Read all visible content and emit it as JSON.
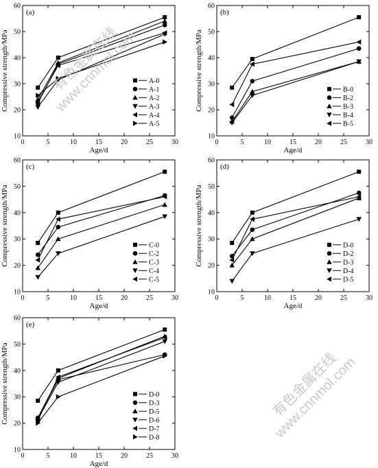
{
  "watermark": {
    "line1": "有色金属在线",
    "line2": "www.cnnmol.com"
  },
  "chart_data": [
    {
      "type": "line",
      "panel_label": "(a)",
      "xlabel": "Age/d",
      "ylabel": "Compressive strength/MPa",
      "xlim": [
        0,
        30
      ],
      "ylim": [
        10,
        60
      ],
      "xticks": [
        0,
        5,
        10,
        15,
        20,
        25,
        30
      ],
      "yticks": [
        10,
        20,
        30,
        40,
        50,
        60
      ],
      "grid": false,
      "legend_position": "right",
      "x": [
        3,
        7,
        28
      ],
      "series": [
        {
          "name": "A-0",
          "marker": "square",
          "values": [
            28.5,
            40,
            55.5
          ]
        },
        {
          "name": "A-1",
          "marker": "circle",
          "values": [
            22.5,
            37.5,
            52.5
          ]
        },
        {
          "name": "A-2",
          "marker": "triangle-up",
          "values": [
            24,
            38,
            54
          ]
        },
        {
          "name": "A-3",
          "marker": "triangle-down",
          "values": [
            21,
            31.5,
            49
          ]
        },
        {
          "name": "A-4",
          "marker": "triangle-left",
          "values": [
            23,
            37,
            49.5
          ]
        },
        {
          "name": "A-5",
          "marker": "triangle-right",
          "values": [
            25.5,
            32,
            46
          ]
        }
      ]
    },
    {
      "type": "line",
      "panel_label": "(b)",
      "xlabel": "Age/d",
      "ylabel": "Compressive strength/MPa",
      "xlim": [
        0,
        30
      ],
      "ylim": [
        10,
        60
      ],
      "xticks": [
        0,
        5,
        10,
        15,
        20,
        25,
        30
      ],
      "yticks": [
        10,
        20,
        30,
        40,
        50,
        60
      ],
      "grid": false,
      "legend_position": "right",
      "x": [
        3,
        7,
        28
      ],
      "series": [
        {
          "name": "B-0",
          "marker": "square",
          "values": [
            28.5,
            39.5,
            55.5
          ]
        },
        {
          "name": "B-2",
          "marker": "circle",
          "values": [
            17,
            31,
            43.5
          ]
        },
        {
          "name": "B-3",
          "marker": "triangle-up",
          "values": [
            15.5,
            27,
            38.5
          ]
        },
        {
          "name": "B-4",
          "marker": "triangle-down",
          "values": [
            15,
            25.5,
            38.5
          ]
        },
        {
          "name": "B-5",
          "marker": "triangle-left",
          "values": [
            22,
            37.5,
            46
          ]
        }
      ]
    },
    {
      "type": "line",
      "panel_label": "(c)",
      "xlabel": "Age/d",
      "ylabel": "Compressive strength/MPa",
      "xlim": [
        0,
        30
      ],
      "ylim": [
        10,
        60
      ],
      "xticks": [
        0,
        5,
        10,
        15,
        20,
        25,
        30
      ],
      "yticks": [
        10,
        20,
        30,
        40,
        50,
        60
      ],
      "grid": false,
      "legend_position": "right",
      "x": [
        3,
        7,
        28
      ],
      "series": [
        {
          "name": "C-0",
          "marker": "square",
          "values": [
            28.5,
            40,
            55.5
          ]
        },
        {
          "name": "C-2",
          "marker": "circle",
          "values": [
            24,
            34.5,
            46.5
          ]
        },
        {
          "name": "C-3",
          "marker": "triangle-up",
          "values": [
            19,
            30,
            43
          ]
        },
        {
          "name": "C-4",
          "marker": "triangle-down",
          "values": [
            15.5,
            24.5,
            38.5
          ]
        },
        {
          "name": "C-5",
          "marker": "triangle-left",
          "values": [
            22,
            37.5,
            46
          ]
        }
      ]
    },
    {
      "type": "line",
      "panel_label": "(d)",
      "xlabel": "Age/d",
      "ylabel": "Compressive strength/MPa",
      "xlim": [
        0,
        30
      ],
      "ylim": [
        10,
        60
      ],
      "xticks": [
        0,
        5,
        10,
        15,
        20,
        25,
        30
      ],
      "yticks": [
        10,
        20,
        30,
        40,
        50,
        60
      ],
      "grid": false,
      "legend_position": "right",
      "x": [
        3,
        7,
        28
      ],
      "series": [
        {
          "name": "D-0",
          "marker": "square",
          "values": [
            28.5,
            40,
            55.5
          ]
        },
        {
          "name": "D-2",
          "marker": "circle",
          "values": [
            23.5,
            33.5,
            47.5
          ]
        },
        {
          "name": "D-3",
          "marker": "triangle-up",
          "values": [
            20,
            30,
            45.5
          ]
        },
        {
          "name": "D-4",
          "marker": "triangle-down",
          "values": [
            14,
            24.5,
            37.5
          ]
        },
        {
          "name": "D-5",
          "marker": "triangle-left",
          "values": [
            22,
            37.5,
            46
          ]
        }
      ]
    },
    {
      "type": "line",
      "panel_label": "(e)",
      "xlabel": "Age/d",
      "ylabel": "Compressive strength/MPa",
      "xlim": [
        0,
        30
      ],
      "ylim": [
        10,
        60
      ],
      "xticks": [
        0,
        5,
        10,
        15,
        20,
        25,
        30
      ],
      "yticks": [
        10,
        20,
        30,
        40,
        50,
        60
      ],
      "grid": false,
      "legend_position": "right",
      "x": [
        3,
        7,
        28
      ],
      "series": [
        {
          "name": "D-0",
          "marker": "square",
          "values": [
            28.5,
            40,
            55.5
          ]
        },
        {
          "name": "D-3",
          "marker": "circle",
          "values": [
            22,
            36.5,
            46
          ]
        },
        {
          "name": "D-5",
          "marker": "triangle-up",
          "values": [
            22,
            37,
            53
          ]
        },
        {
          "name": "D-6",
          "marker": "triangle-down",
          "values": [
            21.5,
            35.5,
            51
          ]
        },
        {
          "name": "D-7",
          "marker": "triangle-left",
          "values": [
            21,
            37.5,
            52.5
          ]
        },
        {
          "name": "D-8",
          "marker": "triangle-right",
          "values": [
            20,
            30,
            45.5
          ]
        }
      ]
    }
  ]
}
